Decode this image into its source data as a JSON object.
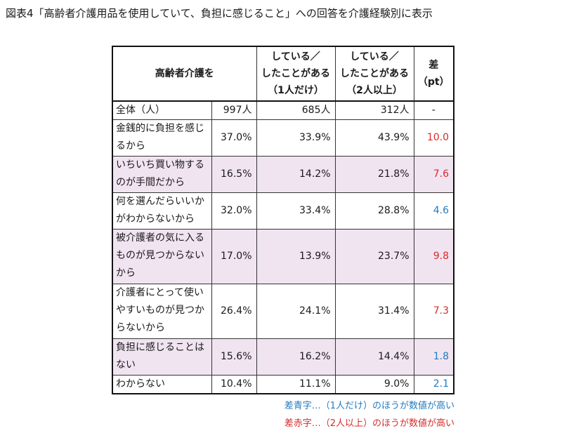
{
  "title": "図表4「高齢者介護用品を使用していて、負担に感じること」への回答を介護経験別に表示",
  "chart_data": {
    "type": "table",
    "columns": [
      {
        "key": "header_label",
        "text": "高齢者介護を"
      },
      {
        "key": "one",
        "text": "している／\nしたことがある\n（1人だけ）"
      },
      {
        "key": "two",
        "text": "している／\nしたことがある\n（2人以上）"
      },
      {
        "key": "diff",
        "text": "差\n（pt）"
      }
    ],
    "total_row": {
      "label": "全体（人）",
      "all": "997人",
      "one": "685人",
      "two": "312人",
      "diff": "-"
    },
    "rows": [
      {
        "label": "金銭的に負担を感じるから",
        "all": "37.0%",
        "one": "33.9%",
        "two": "43.9%",
        "diff": "10.0",
        "diff_color": "red",
        "highlight": false
      },
      {
        "label": "いちいち買い物するのが手間だから",
        "all": "16.5%",
        "one": "14.2%",
        "two": "21.8%",
        "diff": "7.6",
        "diff_color": "red",
        "highlight": true
      },
      {
        "label": "何を選んだらいいかがわからないから",
        "all": "32.0%",
        "one": "33.4%",
        "two": "28.8%",
        "diff": "4.6",
        "diff_color": "blue",
        "highlight": false
      },
      {
        "label": "被介護者の気に入るものが見つからないから",
        "all": "17.0%",
        "one": "13.9%",
        "two": "23.7%",
        "diff": "9.8",
        "diff_color": "red",
        "highlight": true
      },
      {
        "label": "介護者にとって使いやすいものが見つからないから",
        "all": "26.4%",
        "one": "24.1%",
        "two": "31.4%",
        "diff": "7.3",
        "diff_color": "red",
        "highlight": false
      },
      {
        "label": "負担に感じることはない",
        "all": "15.6%",
        "one": "16.2%",
        "two": "14.4%",
        "diff": "1.8",
        "diff_color": "blue",
        "highlight": true
      },
      {
        "label": "わからない",
        "all": "10.4%",
        "one": "11.1%",
        "two": "9.0%",
        "diff": "2.1",
        "diff_color": "blue",
        "highlight": false
      }
    ]
  },
  "legend": {
    "blue_note": "差青字…（1人だけ）のほうが数値が高い",
    "red_note": "差赤字…（2人以上）のほうが数値が高い",
    "blue_color": "#1f7bc1",
    "red_color": "#d72a2a",
    "highlight_color": "#f1e4f1"
  }
}
